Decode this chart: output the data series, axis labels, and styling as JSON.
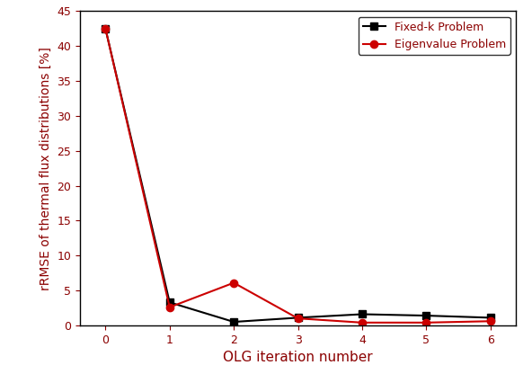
{
  "x": [
    0,
    1,
    2,
    3,
    4,
    5,
    6
  ],
  "fkp": [
    42.5,
    3.3,
    0.5,
    1.1,
    1.6,
    1.4,
    1.1
  ],
  "evp": [
    42.5,
    2.6,
    6.1,
    1.0,
    0.4,
    0.4,
    0.6
  ],
  "fkp_label": "Fixed-k Problem",
  "evp_label": "Eigenvalue Problem",
  "xlabel": "OLG iteration number",
  "ylabel": "rRMSE of thermal flux distributions [%]",
  "ylim": [
    0,
    45
  ],
  "yticks": [
    0,
    5,
    10,
    15,
    20,
    25,
    30,
    35,
    40,
    45
  ],
  "xticks": [
    0,
    1,
    2,
    3,
    4,
    5,
    6
  ],
  "fkp_color": "#000000",
  "evp_color": "#cc0000",
  "label_color": "#8b0000",
  "bg_color": "#ffffff",
  "legend_loc": "upper right",
  "fkp_marker": "s",
  "evp_marker": "o",
  "linewidth": 1.5,
  "markersize": 6,
  "xlabel_fontsize": 11,
  "ylabel_fontsize": 10,
  "tick_fontsize": 9,
  "legend_fontsize": 9
}
